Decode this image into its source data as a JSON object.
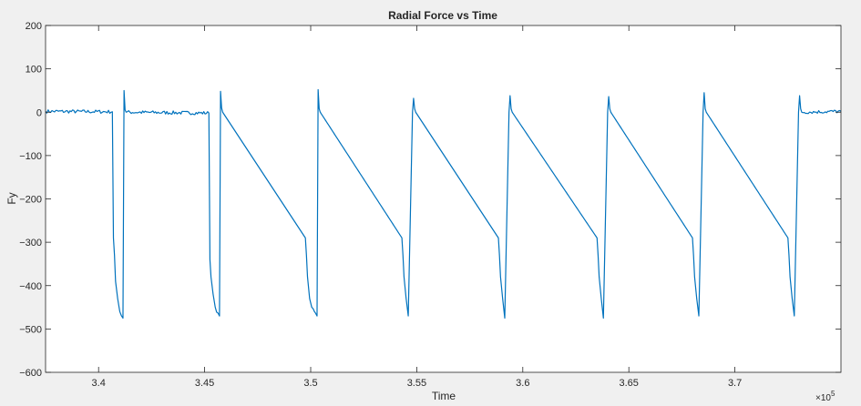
{
  "chart_data": {
    "type": "line",
    "title": "Radial Force vs Time",
    "xlabel": "Time",
    "ylabel": "Fy",
    "x_exponent_label": "×10",
    "x_exponent_power": "5",
    "xlim": [
      337500,
      375000
    ],
    "ylim": [
      -600,
      200
    ],
    "x_ticks": [
      {
        "value": 340000,
        "label": "3.4"
      },
      {
        "value": 345000,
        "label": "3.45"
      },
      {
        "value": 350000,
        "label": "3.5"
      },
      {
        "value": 355000,
        "label": "3.55"
      },
      {
        "value": 360000,
        "label": "3.6"
      },
      {
        "value": 365000,
        "label": "3.65"
      },
      {
        "value": 370000,
        "label": "3.7"
      }
    ],
    "y_ticks": [
      {
        "value": 200,
        "label": "200"
      },
      {
        "value": 100,
        "label": "100"
      },
      {
        "value": 0,
        "label": "0"
      },
      {
        "value": -100,
        "label": "−100"
      },
      {
        "value": -200,
        "label": "−200"
      },
      {
        "value": -300,
        "label": "−300"
      },
      {
        "value": -400,
        "label": "−400"
      },
      {
        "value": -500,
        "label": "−500"
      },
      {
        "value": -600,
        "label": "−600"
      }
    ],
    "grid": false,
    "series": [
      {
        "color": "#0072bd",
        "x": [
          337500,
          340650,
          340700,
          340750,
          340800,
          340900,
          341000,
          341150,
          341200,
          341250,
          341300,
          345200,
          345250,
          345300,
          345400,
          345500,
          345700,
          345750,
          345800,
          345850,
          349750,
          349800,
          349850,
          349950,
          350050,
          350300,
          350350,
          350400,
          350450,
          354300,
          354350,
          354400,
          354500,
          354600,
          354800,
          354850,
          354900,
          354950,
          358850,
          358900,
          358950,
          359050,
          359150,
          359350,
          359400,
          359450,
          359500,
          363500,
          363550,
          363600,
          363700,
          363800,
          364000,
          364050,
          364100,
          364150,
          368000,
          368050,
          368100,
          368200,
          368300,
          368500,
          368550,
          368600,
          368650,
          372500,
          372550,
          372600,
          372700,
          372800,
          373000,
          373050,
          373100,
          373150,
          375000
        ],
        "y": [
          2,
          1,
          -290,
          -330,
          -390,
          -430,
          -460,
          -475,
          50,
          5,
          0,
          -2,
          -340,
          -380,
          -420,
          -450,
          -470,
          48,
          10,
          0,
          -290,
          -330,
          -380,
          -430,
          -450,
          -470,
          52,
          8,
          0,
          -290,
          -330,
          -380,
          -430,
          -470,
          0,
          32,
          8,
          0,
          -290,
          -330,
          -380,
          -430,
          -475,
          0,
          38,
          8,
          0,
          -290,
          -330,
          -380,
          -430,
          -475,
          0,
          36,
          8,
          0,
          -290,
          -330,
          -380,
          -430,
          -470,
          0,
          45,
          8,
          0,
          -290,
          -330,
          -380,
          -430,
          -470,
          0,
          38,
          8,
          0,
          2
        ]
      }
    ]
  }
}
